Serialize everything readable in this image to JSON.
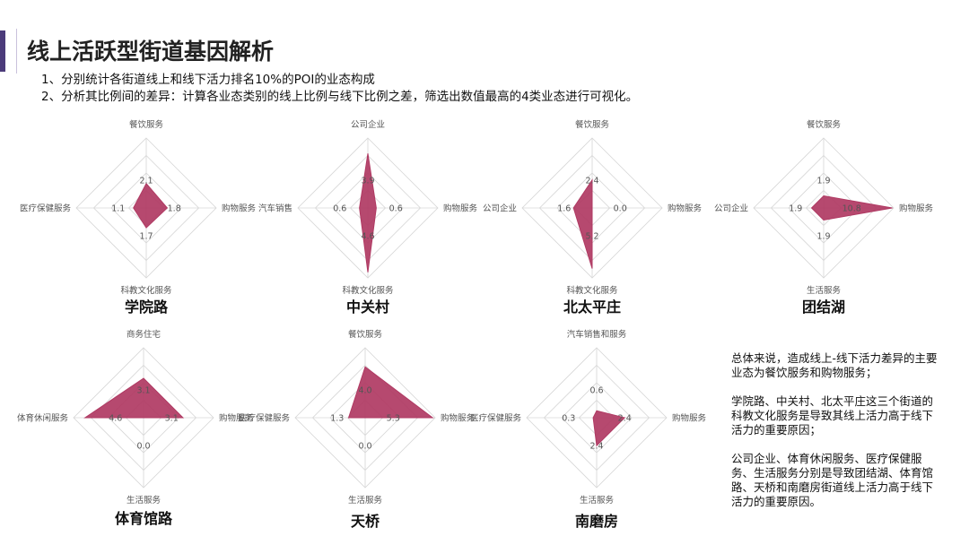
{
  "page": {
    "title": "线上活跃型街道基因解析",
    "intro_lines": [
      "1、分别统计各街道线上和线下活力排名10%的POI的业态构成",
      "2、分析其比例间的差异：计算各业态类别的线上比例与线下比例之差，筛选出数值最高的4类业态进行可视化。"
    ],
    "summary": [
      "总体来说，造成线上-线下活力差异的主要业态为餐饮服务和购物服务；",
      "学院路、中关村、北太平庄这三个街道的科教文化服务是导致其线上活力高于线下活力的重要原因；",
      "公司企业、体育休闲服务、医疗保健服务、生活服务分别是导致团结湖、体育馆路、天桥和南磨房街道线上活力高于线下活力的重要原因。"
    ],
    "colors": {
      "accent": "#4b3b7a",
      "fill": "#b03a63",
      "grid": "#d6d6d6"
    }
  },
  "chart_data": [
    {
      "type": "radar",
      "name": "学院路",
      "axes": [
        "餐饮服务",
        "购物服务",
        "科教文化服务",
        "医疗保健服务"
      ],
      "values": [
        2.1,
        1.8,
        1.7,
        1.1
      ],
      "labels": [
        "2.1",
        "1.8",
        "1.7",
        "1.1"
      ],
      "max": 6
    },
    {
      "type": "radar",
      "name": "中关村",
      "axes": [
        "公司企业",
        "购物服务",
        "科教文化服务",
        "汽车销售"
      ],
      "values": [
        3.9,
        0.6,
        4.6,
        0.6
      ],
      "labels": [
        "3.9",
        "0.6",
        "4.6",
        "0.6"
      ],
      "max": 5
    },
    {
      "type": "radar",
      "name": "北太平庄",
      "axes": [
        "餐饮服务",
        "购物服务",
        "科教文化服务",
        "公司企业"
      ],
      "values": [
        2.4,
        0.0,
        5.2,
        1.6
      ],
      "labels": [
        "2.4",
        "0.0",
        "5.2",
        "1.6"
      ],
      "max": 6
    },
    {
      "type": "radar",
      "name": "团结湖",
      "axes": [
        "餐饮服务",
        "购物服务",
        "生活服务",
        "公司企业"
      ],
      "values": [
        1.9,
        10.8,
        1.9,
        1.9
      ],
      "labels": [
        "1.9",
        "10.8",
        "1.9",
        "1.9"
      ],
      "max": 11
    },
    {
      "type": "radar",
      "name": "体育馆路",
      "axes": [
        "商务住宅",
        "购物服务",
        "生活服务",
        "体育休闲服务"
      ],
      "values": [
        3.1,
        3.1,
        0.0,
        4.6
      ],
      "labels": [
        "3.1",
        "3.1",
        "0.0",
        "4.6"
      ],
      "max": 5.5
    },
    {
      "type": "radar",
      "name": "天桥",
      "axes": [
        "餐饮服务",
        "购物服务",
        "生活服务",
        "医疗保健服务"
      ],
      "values": [
        4.0,
        5.3,
        0.0,
        1.3
      ],
      "labels": [
        "4.0",
        "5.3",
        "0.0",
        "1.3"
      ],
      "max": 5.5
    },
    {
      "type": "radar",
      "name": "南磨房",
      "axes": [
        "汽车销售和服务",
        "购物服务",
        "生活服务",
        "医疗保健服务"
      ],
      "values": [
        0.6,
        2.4,
        2.4,
        0.3
      ],
      "labels": [
        "0.6",
        "2.4",
        "2.4",
        "0.3"
      ],
      "max": 6
    }
  ]
}
